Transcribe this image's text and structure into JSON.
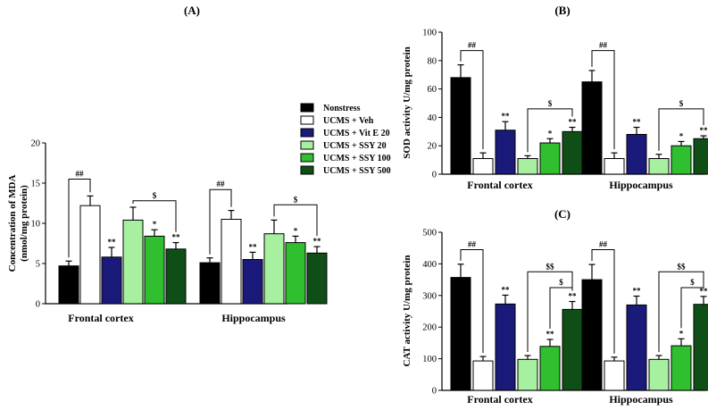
{
  "legend": [
    {
      "label": "Nonstress",
      "color": "#000000"
    },
    {
      "label": "UCMS + Veh",
      "color": "#ffffff"
    },
    {
      "label": "UCMS + Vit E 20",
      "color": "#1a1a7a"
    },
    {
      "label": "UCMS + SSY 20",
      "color": "#a6f0a0"
    },
    {
      "label": "UCMS + SSY 100",
      "color": "#2fbf2f"
    },
    {
      "label": "UCMS + SSY 500",
      "color": "#0f4f17"
    }
  ],
  "chart_data": [
    {
      "panel": "(A)",
      "type": "bar",
      "title": "(A)",
      "ylabel": "Concentration of MDA",
      "ylabel2": "(nmol/mg protein)",
      "ylim": [
        0,
        20
      ],
      "ticks": [
        "0",
        "5",
        "10",
        "15",
        "20"
      ],
      "categories": [
        "Frontal cortex",
        "Hippocampus"
      ],
      "series": [
        {
          "name": "Nonstress",
          "values": [
            4.7,
            5.1
          ],
          "errors": [
            0.6,
            0.6
          ],
          "marks": [
            "",
            ""
          ]
        },
        {
          "name": "UCMS + Veh",
          "values": [
            12.2,
            10.5
          ],
          "errors": [
            1.2,
            1.1
          ],
          "marks": [
            "",
            ""
          ]
        },
        {
          "name": "UCMS + Vit E 20",
          "values": [
            5.8,
            5.5
          ],
          "errors": [
            1.2,
            0.9
          ],
          "marks": [
            "**",
            "**"
          ]
        },
        {
          "name": "UCMS + SSY 20",
          "values": [
            10.4,
            8.7
          ],
          "errors": [
            1.6,
            1.7
          ],
          "marks": [
            "",
            ""
          ]
        },
        {
          "name": "UCMS + SSY 100",
          "values": [
            8.4,
            7.6
          ],
          "errors": [
            0.8,
            0.8
          ],
          "marks": [
            "*",
            "*"
          ]
        },
        {
          "name": "UCMS + SSY 500",
          "values": [
            6.8,
            6.3
          ],
          "errors": [
            0.8,
            0.8
          ],
          "marks": [
            "**",
            "**"
          ]
        }
      ],
      "brackets": [
        {
          "group": 0,
          "from": 0,
          "to": 1,
          "y": 15.5,
          "label": "##"
        },
        {
          "group": 1,
          "from": 0,
          "to": 1,
          "y": 14.2,
          "label": "##"
        },
        {
          "group": 0,
          "from": 3,
          "to": 5,
          "y": 12.8,
          "label": "$"
        },
        {
          "group": 1,
          "from": 3,
          "to": 5,
          "y": 12.3,
          "label": "$"
        }
      ]
    },
    {
      "panel": "(B)",
      "type": "bar",
      "title": "(B)",
      "ylabel": "SOD activity U/mg protein",
      "ylim": [
        0,
        100
      ],
      "ticks": [
        "0",
        "20",
        "40",
        "60",
        "80",
        "100"
      ],
      "categories": [
        "Frontal cortex",
        "Hippocampus"
      ],
      "series": [
        {
          "name": "Nonstress",
          "values": [
            68,
            65
          ],
          "errors": [
            9,
            8
          ],
          "marks": [
            "",
            ""
          ]
        },
        {
          "name": "UCMS + Veh",
          "values": [
            11,
            11
          ],
          "errors": [
            4,
            4
          ],
          "marks": [
            "",
            ""
          ]
        },
        {
          "name": "UCMS + Vit E 20",
          "values": [
            31,
            28
          ],
          "errors": [
            6,
            5
          ],
          "marks": [
            "**",
            "**"
          ]
        },
        {
          "name": "UCMS + SSY 20",
          "values": [
            11,
            11
          ],
          "errors": [
            2,
            3
          ],
          "marks": [
            "",
            ""
          ]
        },
        {
          "name": "UCMS + SSY 100",
          "values": [
            22,
            20
          ],
          "errors": [
            3,
            3
          ],
          "marks": [
            "*",
            "*"
          ]
        },
        {
          "name": "UCMS + SSY 500",
          "values": [
            30,
            25
          ],
          "errors": [
            3,
            2
          ],
          "marks": [
            "**",
            "**"
          ]
        }
      ],
      "brackets": [
        {
          "group": 0,
          "from": 0,
          "to": 1,
          "y": 87,
          "label": "##"
        },
        {
          "group": 1,
          "from": 0,
          "to": 1,
          "y": 87,
          "label": "##"
        },
        {
          "group": 0,
          "from": 3,
          "to": 5,
          "y": 46,
          "label": "$"
        },
        {
          "group": 1,
          "from": 3,
          "to": 5,
          "y": 46,
          "label": "$"
        }
      ]
    },
    {
      "panel": "(C)",
      "type": "bar",
      "title": "(C)",
      "ylabel": "CAT activity U/mg protein",
      "ylim": [
        0,
        500
      ],
      "ticks": [
        "0",
        "100",
        "200",
        "300",
        "400",
        "500"
      ],
      "categories": [
        "Frontal cortex",
        "Hippocampus"
      ],
      "series": [
        {
          "name": "Nonstress",
          "values": [
            357,
            350
          ],
          "errors": [
            42,
            48
          ],
          "marks": [
            "",
            ""
          ]
        },
        {
          "name": "UCMS + Veh",
          "values": [
            93,
            93
          ],
          "errors": [
            14,
            12
          ],
          "marks": [
            "",
            ""
          ]
        },
        {
          "name": "UCMS + Vit E 20",
          "values": [
            273,
            270
          ],
          "errors": [
            28,
            28
          ],
          "marks": [
            "**",
            "**"
          ]
        },
        {
          "name": "UCMS + SSY 20",
          "values": [
            98,
            98
          ],
          "errors": [
            12,
            12
          ],
          "marks": [
            "",
            ""
          ]
        },
        {
          "name": "UCMS + SSY 100",
          "values": [
            139,
            141
          ],
          "errors": [
            22,
            22
          ],
          "marks": [
            "**",
            "*"
          ]
        },
        {
          "name": "UCMS + SSY 500",
          "values": [
            256,
            272
          ],
          "errors": [
            25,
            25
          ],
          "marks": [
            "**",
            "**"
          ]
        }
      ],
      "brackets": [
        {
          "group": 0,
          "from": 0,
          "to": 1,
          "y": 445,
          "label": "##"
        },
        {
          "group": 1,
          "from": 0,
          "to": 1,
          "y": 445,
          "label": "##"
        },
        {
          "group": 0,
          "from": 3,
          "to": 5,
          "y": 375,
          "label": "$$"
        },
        {
          "group": 1,
          "from": 3,
          "to": 5,
          "y": 375,
          "label": "$$"
        },
        {
          "group": 0,
          "from": 4,
          "to": 5,
          "y": 325,
          "label": "$"
        },
        {
          "group": 1,
          "from": 4,
          "to": 5,
          "y": 325,
          "label": "$"
        }
      ]
    }
  ]
}
